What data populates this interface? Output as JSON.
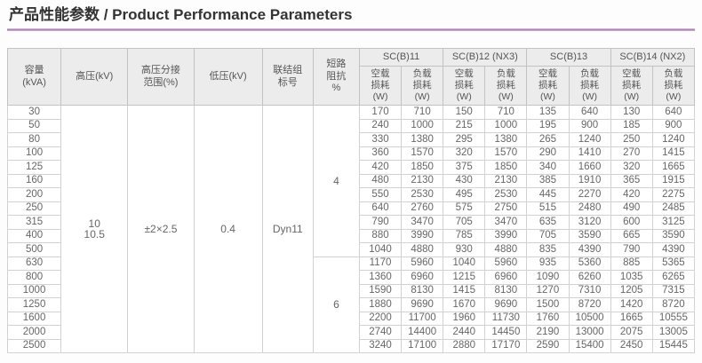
{
  "page": {
    "title": "产品性能参数 / Product Performance Parameters",
    "accent_color": "#a884b0"
  },
  "table": {
    "headers": {
      "capacity": "容量\n(kVA)",
      "hv": "高压(kV)",
      "tap": "高压分接\n范围(%)",
      "lv": "低压(kV)",
      "vector": "联结组\n标号",
      "impedance": "短路\n阻抗\n%"
    },
    "groups": [
      "SC(B)11",
      "SC(B)12 (NX3)",
      "SC(B)13",
      "SC(B)14 (NX2)"
    ],
    "subheaders": {
      "no_load": "空载\n损耗\n(W)",
      "load": "负载\n损耗\n(W)"
    },
    "merged": {
      "hv": "10\n10.5",
      "tap": "±2×2.5",
      "lv": "0.4",
      "vector": "Dyn11"
    },
    "impedance_spans": [
      {
        "value": "4",
        "start": 0,
        "count": 11
      },
      {
        "value": "6",
        "start": 11,
        "count": 7
      }
    ],
    "rows": [
      {
        "capacity": "30",
        "values": [
          170,
          710,
          150,
          710,
          135,
          640,
          130,
          640
        ]
      },
      {
        "capacity": "50",
        "values": [
          240,
          1000,
          215,
          1000,
          195,
          900,
          185,
          900
        ]
      },
      {
        "capacity": "80",
        "values": [
          330,
          1380,
          295,
          1380,
          265,
          1240,
          250,
          1240
        ]
      },
      {
        "capacity": "100",
        "values": [
          360,
          1570,
          320,
          1570,
          290,
          1410,
          270,
          1415
        ]
      },
      {
        "capacity": "125",
        "values": [
          420,
          1850,
          375,
          1850,
          340,
          1660,
          320,
          1665
        ]
      },
      {
        "capacity": "160",
        "values": [
          480,
          2130,
          430,
          2130,
          385,
          1910,
          365,
          1915
        ]
      },
      {
        "capacity": "200",
        "values": [
          550,
          2530,
          495,
          2530,
          445,
          2270,
          420,
          2275
        ]
      },
      {
        "capacity": "250",
        "values": [
          640,
          2760,
          575,
          2750,
          515,
          2480,
          490,
          2485
        ]
      },
      {
        "capacity": "315",
        "values": [
          790,
          3470,
          705,
          3470,
          635,
          3120,
          600,
          3125
        ]
      },
      {
        "capacity": "400",
        "values": [
          880,
          3990,
          785,
          3990,
          705,
          3590,
          665,
          3590
        ]
      },
      {
        "capacity": "500",
        "values": [
          1040,
          4880,
          930,
          4880,
          835,
          4390,
          790,
          4390
        ]
      },
      {
        "capacity": "630",
        "values": [
          1170,
          5960,
          1040,
          5960,
          935,
          5360,
          885,
          5365
        ]
      },
      {
        "capacity": "800",
        "values": [
          1360,
          6960,
          1215,
          6960,
          1090,
          6260,
          1035,
          6265
        ]
      },
      {
        "capacity": "1000",
        "values": [
          1590,
          8130,
          1415,
          8130,
          1270,
          7310,
          1205,
          7315
        ]
      },
      {
        "capacity": "1250",
        "values": [
          1880,
          9690,
          1670,
          9690,
          1500,
          8720,
          1420,
          8720
        ]
      },
      {
        "capacity": "1600",
        "values": [
          2200,
          11700,
          1960,
          11730,
          1760,
          10500,
          1665,
          10555
        ]
      },
      {
        "capacity": "2000",
        "values": [
          2740,
          14400,
          2440,
          14450,
          2190,
          13000,
          2075,
          13005
        ]
      },
      {
        "capacity": "2500",
        "values": [
          3240,
          17100,
          2880,
          17170,
          2590,
          15400,
          2450,
          15445
        ]
      }
    ]
  }
}
